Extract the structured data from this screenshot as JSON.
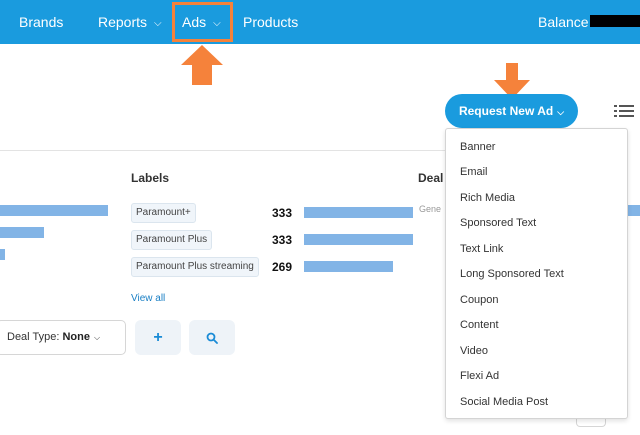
{
  "nav": {
    "brands": "Brands",
    "reports": "Reports",
    "ads": "Ads",
    "products": "Products",
    "balance": "Balance",
    "chevron": "⌵"
  },
  "colors": {
    "accent": "#1a9bde",
    "highlight": "#f5823b",
    "bar": "#82b4e6"
  },
  "toolbar": {
    "request_label": "Request New Ad",
    "chevron": "⌵"
  },
  "labels_section": {
    "heading": "Labels",
    "items": [
      {
        "label": "Paramount+",
        "count": "333"
      },
      {
        "label": "Paramount Plus",
        "count": "333"
      },
      {
        "label": "Paramount Plus streaming",
        "count": "269"
      }
    ],
    "view_all": "View all"
  },
  "deal_section": {
    "heading": "Deal",
    "first_row_fragment": "Gene"
  },
  "filters": {
    "deal_type_label": "Deal Type:",
    "deal_type_value": "None",
    "chevron": "⌵",
    "add_symbol": "+",
    "search_icon": "search-icon"
  },
  "ad_type_menu": {
    "items": [
      "Banner",
      "Email",
      "Rich Media",
      "Sponsored Text",
      "Text Link",
      "Long Sponsored Text",
      "Coupon",
      "Content",
      "Video",
      "Flexi Ad",
      "Social Media Post"
    ]
  }
}
